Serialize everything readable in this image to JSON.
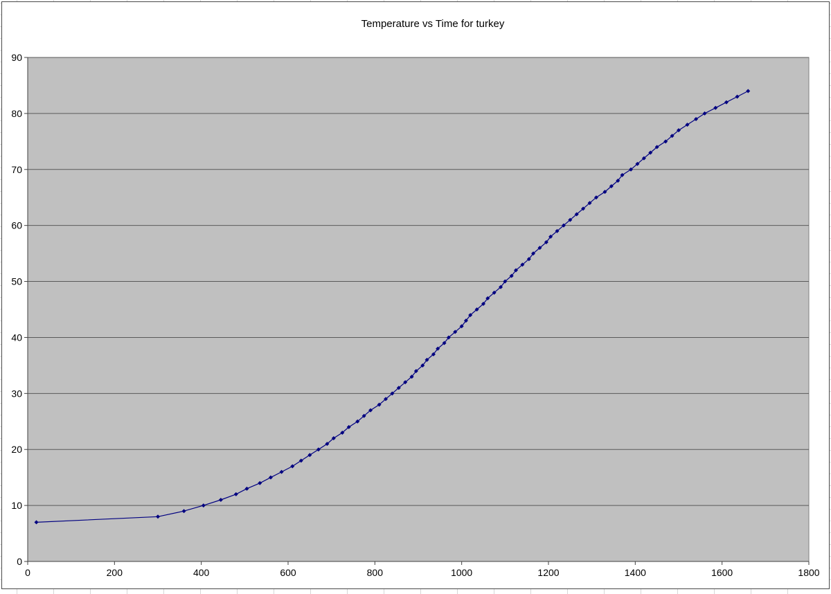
{
  "chart_data": {
    "type": "line",
    "title": "Temperature vs Time for turkey",
    "xlabel": "",
    "ylabel": "",
    "xlim": [
      0,
      1800
    ],
    "ylim": [
      0,
      90
    ],
    "x_ticks": [
      0,
      200,
      400,
      600,
      800,
      1000,
      1200,
      1400,
      1600,
      1800
    ],
    "y_ticks": [
      0,
      10,
      20,
      30,
      40,
      50,
      60,
      70,
      80,
      90
    ],
    "grid": "horizontal-only",
    "legend": "none",
    "plot_background": "#c0c0c0",
    "plot_border_color": "#808080",
    "gridline_color": "#595959",
    "axis_color": "#404040",
    "series": [
      {
        "name": "Temperature",
        "color": "#000080",
        "marker": "diamond",
        "points": [
          [
            20,
            7
          ],
          [
            300,
            8
          ],
          [
            360,
            9
          ],
          [
            405,
            10
          ],
          [
            445,
            11
          ],
          [
            480,
            12
          ],
          [
            505,
            13
          ],
          [
            535,
            14
          ],
          [
            560,
            15
          ],
          [
            585,
            16
          ],
          [
            610,
            17
          ],
          [
            630,
            18
          ],
          [
            650,
            19
          ],
          [
            670,
            20
          ],
          [
            690,
            21
          ],
          [
            705,
            22
          ],
          [
            725,
            23
          ],
          [
            740,
            24
          ],
          [
            760,
            25
          ],
          [
            775,
            26
          ],
          [
            790,
            27
          ],
          [
            810,
            28
          ],
          [
            825,
            29
          ],
          [
            840,
            30
          ],
          [
            855,
            31
          ],
          [
            870,
            32
          ],
          [
            885,
            33
          ],
          [
            895,
            34
          ],
          [
            910,
            35
          ],
          [
            920,
            36
          ],
          [
            935,
            37
          ],
          [
            945,
            38
          ],
          [
            960,
            39
          ],
          [
            970,
            40
          ],
          [
            985,
            41
          ],
          [
            1000,
            42
          ],
          [
            1010,
            43
          ],
          [
            1020,
            44
          ],
          [
            1035,
            45
          ],
          [
            1050,
            46
          ],
          [
            1060,
            47
          ],
          [
            1075,
            48
          ],
          [
            1090,
            49
          ],
          [
            1100,
            50
          ],
          [
            1115,
            51
          ],
          [
            1125,
            52
          ],
          [
            1140,
            53
          ],
          [
            1155,
            54
          ],
          [
            1165,
            55
          ],
          [
            1180,
            56
          ],
          [
            1195,
            57
          ],
          [
            1205,
            58
          ],
          [
            1220,
            59
          ],
          [
            1235,
            60
          ],
          [
            1250,
            61
          ],
          [
            1265,
            62
          ],
          [
            1280,
            63
          ],
          [
            1295,
            64
          ],
          [
            1310,
            65
          ],
          [
            1330,
            66
          ],
          [
            1345,
            67
          ],
          [
            1360,
            68
          ],
          [
            1370,
            69
          ],
          [
            1390,
            70
          ],
          [
            1405,
            71
          ],
          [
            1420,
            72
          ],
          [
            1435,
            73
          ],
          [
            1450,
            74
          ],
          [
            1470,
            75
          ],
          [
            1485,
            76
          ],
          [
            1500,
            77
          ],
          [
            1520,
            78
          ],
          [
            1540,
            79
          ],
          [
            1560,
            80
          ],
          [
            1585,
            81
          ],
          [
            1610,
            82
          ],
          [
            1635,
            83
          ],
          [
            1660,
            84
          ]
        ]
      }
    ]
  }
}
